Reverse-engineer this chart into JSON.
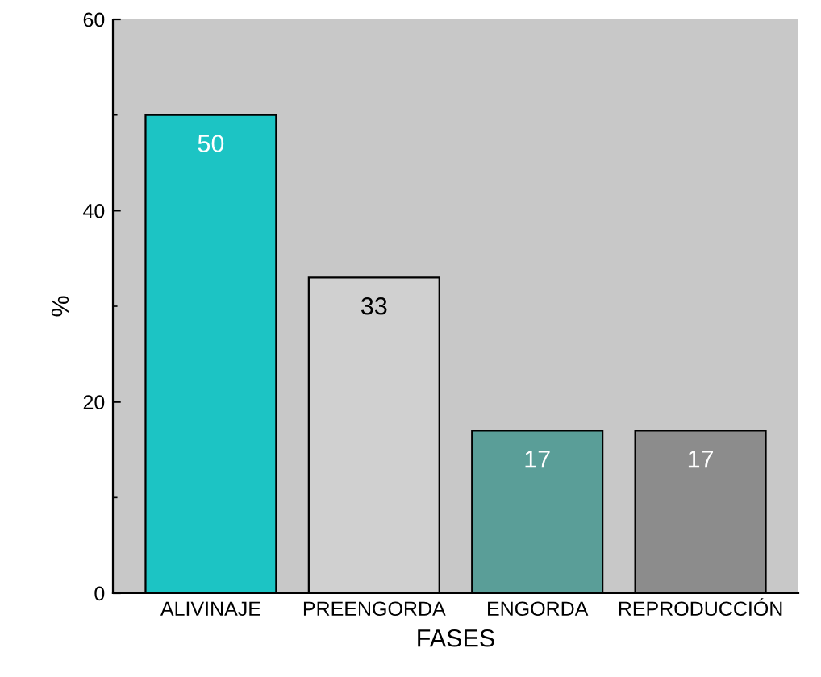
{
  "chart_data": {
    "type": "bar",
    "xlabel": "FASES",
    "ylabel": "%",
    "categories": [
      "ALIVINAJE",
      "PREENGORDA",
      "ENGORDA",
      "REPRODUCCIÓN"
    ],
    "values": [
      50,
      33,
      17,
      17
    ],
    "colors": [
      "#1cc4c4",
      "#d0d0d0",
      "#5a9e98",
      "#8c8c8c"
    ],
    "ylim": [
      0,
      60
    ],
    "yticks": [
      0,
      20,
      40,
      60
    ],
    "grid": false,
    "data_labels": true
  }
}
